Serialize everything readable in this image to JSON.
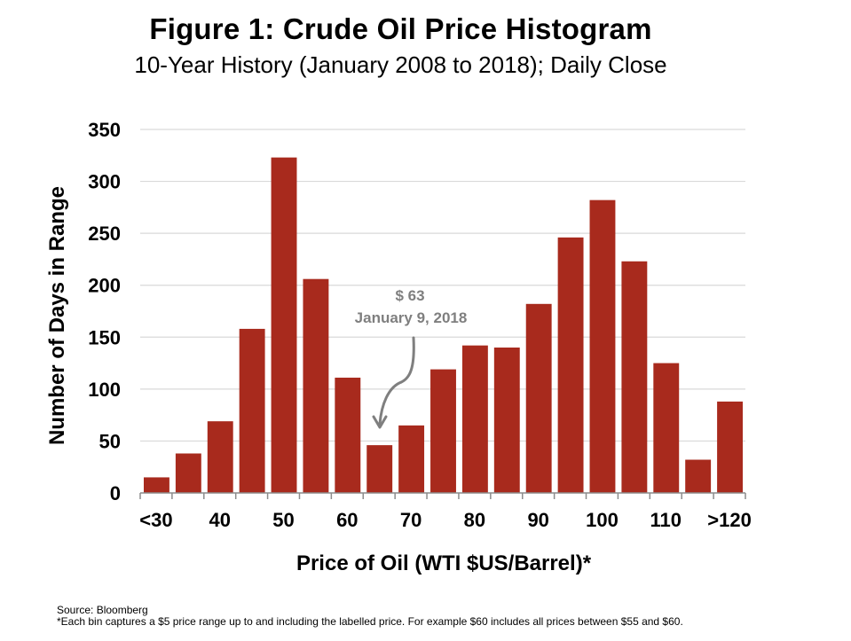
{
  "chart_data": {
    "type": "bar",
    "title": "Figure 1: Crude Oil Price Histogram",
    "subtitle": "10-Year History (January 2008 to 2018); Daily Close",
    "xlabel": "Price of Oil (WTI $US/Barrel)*",
    "ylabel": "Number of Days in Range",
    "ylim": [
      0,
      350
    ],
    "yticks": [
      0,
      50,
      100,
      150,
      200,
      250,
      300,
      350
    ],
    "grid": true,
    "bins": [
      "<30",
      "35",
      "40",
      "45",
      "50",
      "55",
      "60",
      "65",
      "70",
      "75",
      "80",
      "85",
      "90",
      "95",
      "100",
      "105",
      "110",
      "115",
      ">120"
    ],
    "xtick_labels": [
      {
        "bin": 0,
        "label": "<30"
      },
      {
        "bin": 2,
        "label": "40"
      },
      {
        "bin": 4,
        "label": "50"
      },
      {
        "bin": 6,
        "label": "60"
      },
      {
        "bin": 8,
        "label": "70"
      },
      {
        "bin": 10,
        "label": "80"
      },
      {
        "bin": 12,
        "label": "90"
      },
      {
        "bin": 14,
        "label": "100"
      },
      {
        "bin": 16,
        "label": "110"
      },
      {
        "bin": 18,
        "label": ">120"
      }
    ],
    "values": [
      15,
      38,
      69,
      158,
      323,
      206,
      111,
      46,
      65,
      119,
      142,
      140,
      182,
      246,
      282,
      223,
      125,
      32,
      88
    ],
    "bar_color": "#a82a1d",
    "annotation": {
      "line1": "$ 63",
      "line2": "January 9, 2018",
      "points_to_bin": 7,
      "color": "#7f7f7f"
    }
  },
  "footer": {
    "source": "Source: Bloomberg",
    "note": "*Each bin captures a $5 price range up to and including the labelled price. For example $60 includes all prices between $55 and $60."
  }
}
